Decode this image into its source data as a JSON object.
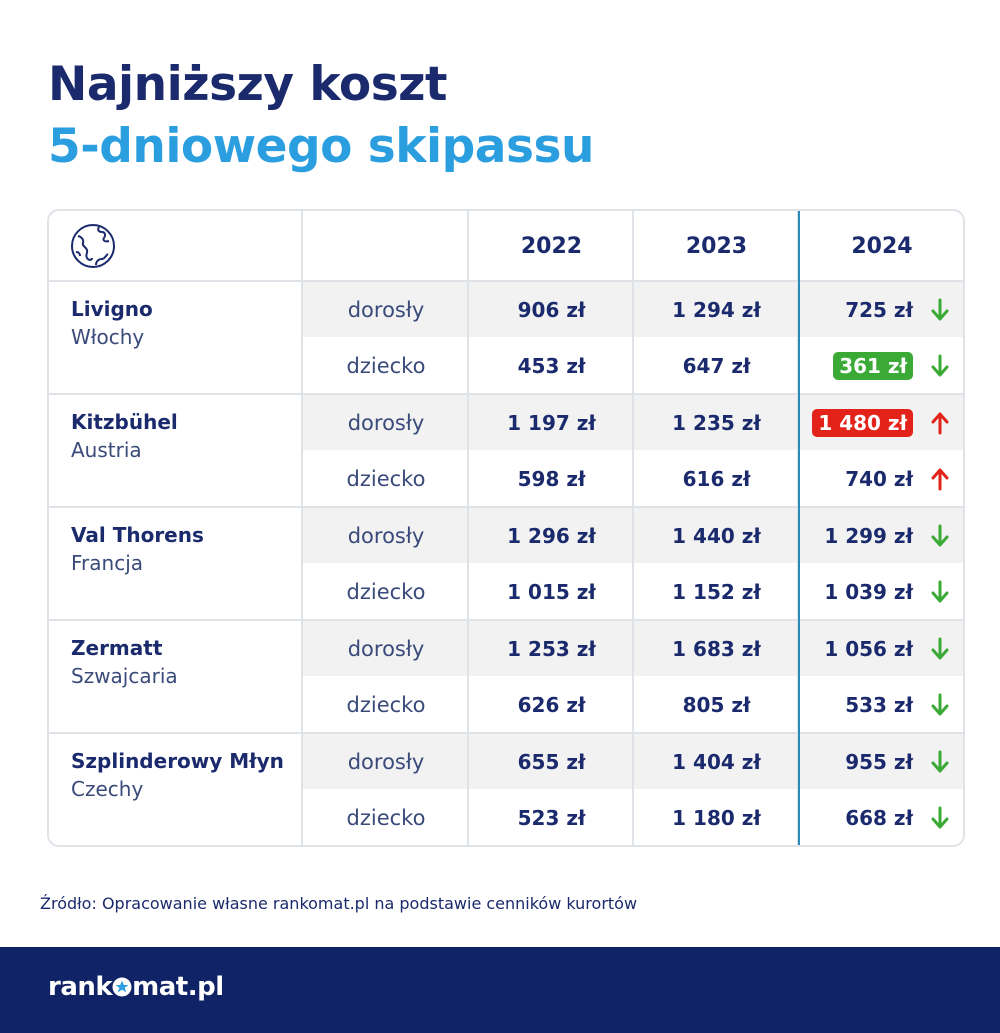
{
  "header": {
    "title_line1": "Najniższy koszt",
    "title_line2": "5-dniowego skipassu"
  },
  "colors": {
    "navy": "#1a2a6c",
    "light_blue": "#2b9ee0",
    "down_green": "#3ba936",
    "up_red": "#e32319",
    "highlight_border": "#2a8ab8",
    "footer_bg": "#0f2366"
  },
  "chart_data": {
    "type": "table",
    "corner_icon": "globe-icon",
    "columns": [
      "2022",
      "2023",
      "2024"
    ],
    "resorts": [
      {
        "name": "Livigno",
        "country": "Włochy",
        "rows": [
          {
            "type": "dorosły",
            "v2022": "906 zł",
            "v2023": "1 294 zł",
            "v2024": "725 zł",
            "trend": "down",
            "badge": null
          },
          {
            "type": "dziecko",
            "v2022": "453 zł",
            "v2023": "647 zł",
            "v2024": "361 zł",
            "trend": "down",
            "badge": "green"
          }
        ]
      },
      {
        "name": "Kitzbühel",
        "country": "Austria",
        "rows": [
          {
            "type": "dorosły",
            "v2022": "1 197 zł",
            "v2023": "1 235 zł",
            "v2024": "1 480 zł",
            "trend": "up",
            "badge": "red"
          },
          {
            "type": "dziecko",
            "v2022": "598 zł",
            "v2023": "616 zł",
            "v2024": "740 zł",
            "trend": "up",
            "badge": null
          }
        ]
      },
      {
        "name": "Val Thorens",
        "country": "Francja",
        "rows": [
          {
            "type": "dorosły",
            "v2022": "1 296 zł",
            "v2023": "1 440 zł",
            "v2024": "1 299 zł",
            "trend": "down",
            "badge": null
          },
          {
            "type": "dziecko",
            "v2022": "1 015 zł",
            "v2023": "1 152 zł",
            "v2024": "1 039 zł",
            "trend": "down",
            "badge": null
          }
        ]
      },
      {
        "name": "Zermatt",
        "country": "Szwajcaria",
        "rows": [
          {
            "type": "dorosły",
            "v2022": "1 253 zł",
            "v2023": "1 683 zł",
            "v2024": "1 056 zł",
            "trend": "down",
            "badge": null
          },
          {
            "type": "dziecko",
            "v2022": "626 zł",
            "v2023": "805 zł",
            "v2024": "533 zł",
            "trend": "down",
            "badge": null
          }
        ]
      },
      {
        "name": "Szplinderowy Młyn",
        "country": "Czechy",
        "rows": [
          {
            "type": "dorosły",
            "v2022": "655 zł",
            "v2023": "1 404 zł",
            "v2024": "955 zł",
            "trend": "down",
            "badge": null
          },
          {
            "type": "dziecko",
            "v2022": "523 zł",
            "v2023": "1 180 zł",
            "v2024": "668 zł",
            "trend": "down",
            "badge": null
          }
        ]
      }
    ]
  },
  "source": "Źródło: Opracowanie własne rankomat.pl na podstawie cenników kurortów",
  "footer": {
    "logo_left": "rank",
    "logo_right": "mat.pl",
    "logo_icon": "star-icon"
  }
}
